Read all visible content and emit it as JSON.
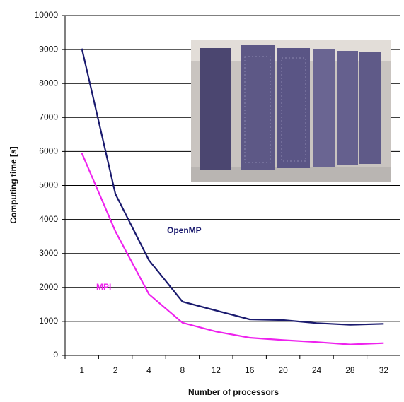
{
  "chart_data": {
    "type": "line",
    "x_label": "Number of processors",
    "y_label": "Computing time [s]",
    "categories": [
      "1",
      "2",
      "4",
      "8",
      "12",
      "16",
      "20",
      "24",
      "28",
      "32"
    ],
    "series": [
      {
        "name": "OpenMP",
        "color": "#1a1a6e",
        "values": [
          9030,
          4750,
          2800,
          1580,
          1320,
          1060,
          1040,
          950,
          900,
          930
        ]
      },
      {
        "name": "MPI",
        "color": "#ee22ee",
        "values": [
          5950,
          3650,
          1800,
          960,
          700,
          520,
          450,
          390,
          320,
          360
        ]
      }
    ],
    "ylim": [
      0,
      10000
    ],
    "yticks": [
      0,
      1000,
      2000,
      3000,
      4000,
      5000,
      6000,
      7000,
      8000,
      9000,
      10000
    ],
    "grid": true
  }
}
